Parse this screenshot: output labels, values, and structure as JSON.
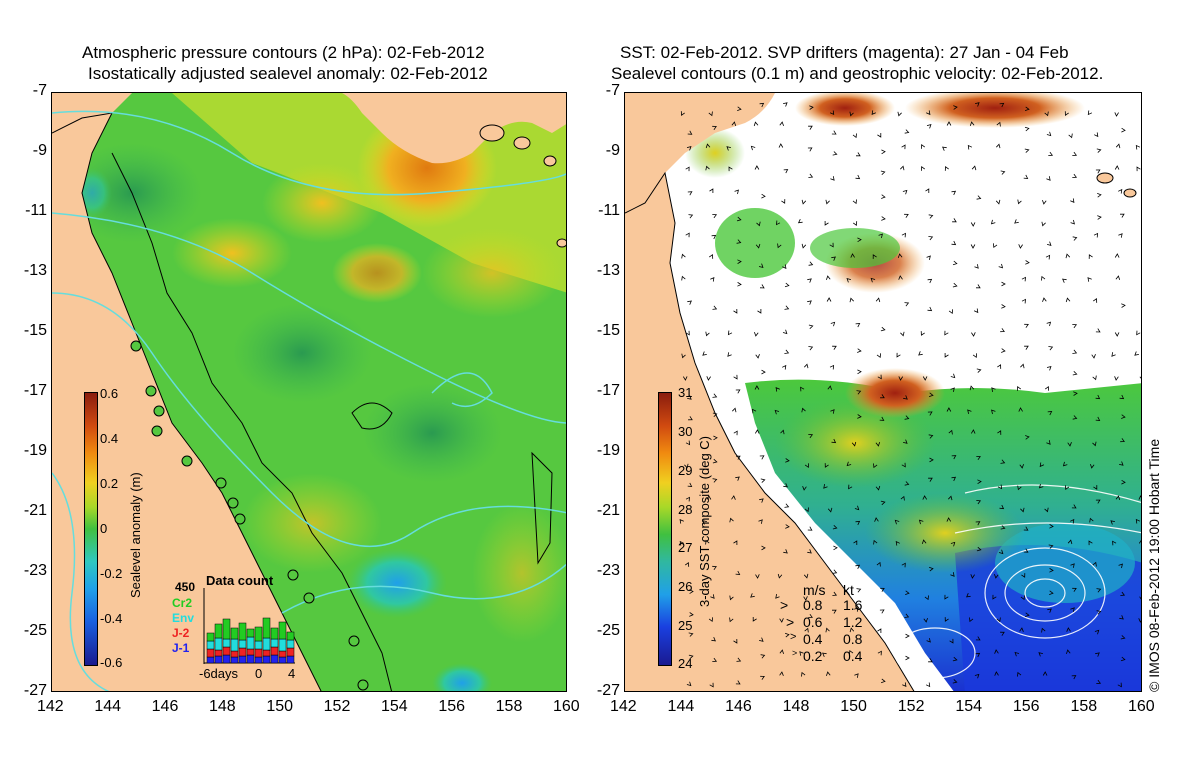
{
  "left_panel": {
    "title_line1": "Atmospheric pressure contours (2 hPa): 02-Feb-2012",
    "title_line2": "Isostatically adjusted sealevel anomaly: 02-Feb-2012",
    "colorbar": {
      "label": "Sealevel anomaly (m)",
      "ticks": [
        "0.6",
        "0.4",
        "0.2",
        "0",
        "-0.2",
        "-0.4",
        "-0.6"
      ],
      "range": [
        -0.6,
        0.6
      ]
    },
    "data_count": {
      "title": "Data count",
      "max_label": "450",
      "series": [
        {
          "name": "Cr2",
          "color": "#22cc22"
        },
        {
          "name": "Env",
          "color": "#22dddd"
        },
        {
          "name": "J-2",
          "color": "#ee2222"
        },
        {
          "name": "J-1",
          "color": "#2222ee"
        }
      ],
      "x_labels": [
        "-6days",
        "0",
        "4"
      ]
    }
  },
  "right_panel": {
    "title_line1": "SST: 02-Feb-2012. SVP drifters (magenta): 27 Jan - 04 Feb",
    "title_line2": "Sealevel contours (0.1 m) and geostrophic velocity: 02-Feb-2012.",
    "colorbar": {
      "label": "3-day SST composite (deg C)",
      "ticks": [
        "31",
        "30",
        "29",
        "28",
        "27",
        "26",
        "25",
        "24"
      ],
      "range": [
        24,
        31
      ]
    },
    "velocity_legend": {
      "header_ms": "m/s",
      "header_kt": "kt",
      "rows": [
        {
          "ms": "0.8",
          "kt": "1.6"
        },
        {
          "ms": "0.6",
          "kt": "1.2"
        },
        {
          "ms": "0.4",
          "kt": "0.8"
        },
        {
          "ms": "0.2",
          "kt": "0.4"
        }
      ]
    },
    "credit": "© IMOS 08-Feb-2012 19:00 Hobart Time"
  },
  "axes": {
    "lat_labels": [
      "-7",
      "-9",
      "-11",
      "-13",
      "-15",
      "-17",
      "-19",
      "-21",
      "-23",
      "-25",
      "-27"
    ],
    "lon_labels": [
      "142",
      "144",
      "146",
      "148",
      "150",
      "152",
      "154",
      "156",
      "158",
      "160"
    ]
  },
  "colors": {
    "land": "#f9c89b",
    "sea_green": "#4cc83c",
    "sea_yellow": "#e8e020",
    "sea_orange": "#e89a20",
    "sea_blue": "#2090e0",
    "contour": "#66dddd",
    "sst_red": "#c0401a",
    "sst_deep_blue": "#1a3adc"
  }
}
